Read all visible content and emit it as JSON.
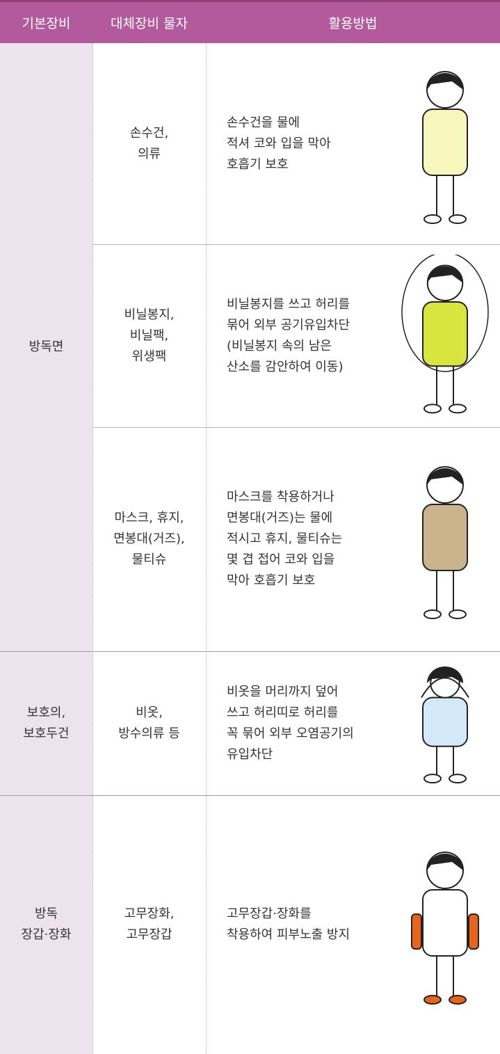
{
  "table": {
    "headers": [
      "기본장비",
      "대체장비 물자",
      "활용방법"
    ],
    "groups": [
      {
        "equipment": [
          "방독면"
        ],
        "items": [
          {
            "substitute": [
              "손수건,",
              "의류"
            ],
            "method": [
              "손수건을 물에",
              "적셔 코와 입을 막아",
              "호흡기 보호"
            ]
          },
          {
            "substitute": [
              "비닐봉지,",
              "비닐팩,",
              "위생팩"
            ],
            "method": [
              "비닐봉지를 쓰고 허리를",
              "묶어 외부 공기유입차단",
              "(비닐봉지 속의 남은",
              "산소를 감안하여 이동)"
            ]
          },
          {
            "substitute": [
              "마스크, 휴지,",
              "면봉대(거즈),",
              "물티슈"
            ],
            "method": [
              "마스크를 착용하거나",
              "면봉대(거즈)는 물에",
              "적시고 휴지, 물티슈는",
              "몇 겹 접어 코와 입을",
              "막아 호흡기 보호"
            ]
          }
        ]
      },
      {
        "equipment": [
          "보호의,",
          "보호두건"
        ],
        "items": [
          {
            "substitute": [
              "비옷,",
              "방수의류 등"
            ],
            "method": [
              "비옷을 머리까지 덮어",
              "쓰고 허리띠로 허리를",
              "꼭 묶어 외부 오염공기의",
              "유입차단"
            ]
          }
        ]
      },
      {
        "equipment": [
          "방독",
          "장갑·장화"
        ],
        "items": [
          {
            "substitute": [
              "고무장화,",
              "고무장갑"
            ],
            "method": [
              "고무장갑·장화를",
              "착용하여 피부노출 방지"
            ]
          }
        ]
      }
    ]
  }
}
